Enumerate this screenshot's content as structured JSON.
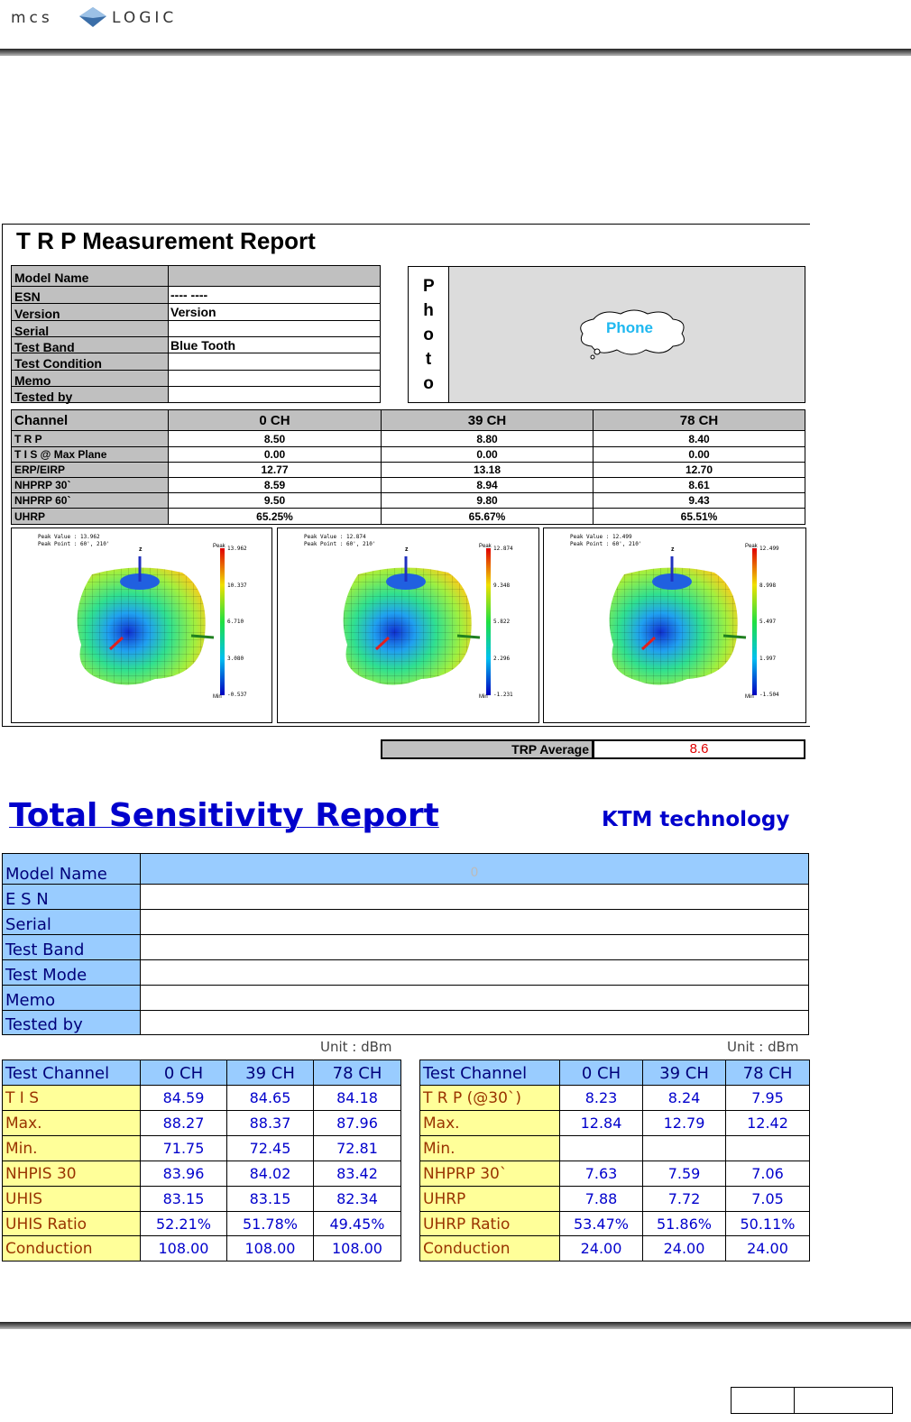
{
  "header": {
    "logo_left": "mcs",
    "logo_right": "LOGIC"
  },
  "trp_report": {
    "title": "T R P  Measurement Report",
    "info": [
      {
        "label": "Model Name"
      },
      {
        "label": "ESN",
        "value": "---- ----"
      },
      {
        "label": "Version",
        "value": "Version"
      },
      {
        "label": "Serial"
      },
      {
        "label": "Test Band",
        "value": "Blue Tooth"
      },
      {
        "label": "Test Condition"
      },
      {
        "label": "Memo"
      },
      {
        "label": "Tested by"
      }
    ],
    "photo_label": "Photo",
    "phone_label": "Phone",
    "channel_table": {
      "header": [
        "Channel",
        "0 CH",
        "39 CH",
        "78 CH"
      ],
      "rows": [
        [
          "T R P",
          "8.50",
          "8.80",
          "8.40"
        ],
        [
          "T I S @ Max Plane",
          "0.00",
          "0.00",
          "0.00"
        ],
        [
          "ERP/EIRP",
          "12.77",
          "13.18",
          "12.70"
        ],
        [
          "NHPRP 30`",
          "8.59",
          "8.94",
          "8.61"
        ],
        [
          "NHPRP 60`",
          "9.50",
          "9.80",
          "9.43"
        ],
        [
          "UHRP",
          "65.25%",
          "65.67%",
          "65.51%"
        ]
      ]
    },
    "plots": [
      {
        "peak_value": "Peak Value :  13.962",
        "peak_point": "Peak Point :  60', 210'",
        "scale": [
          "13.962",
          "10.337",
          "6.710",
          "3.080",
          "-0.537"
        ]
      },
      {
        "peak_value": "Peak Value :  12.874",
        "peak_point": "Peak Point :  60', 210'",
        "scale": [
          "12.874",
          "9.348",
          "5.822",
          "2.296",
          "-1.231"
        ]
      },
      {
        "peak_value": "Peak Value :  12.499",
        "peak_point": "Peak Point :  60', 210'",
        "scale": [
          "12.499",
          "8.998",
          "5.497",
          "1.997",
          "-1.504"
        ]
      }
    ],
    "plot_axis": "z",
    "plot_peak": "Peak",
    "plot_min": "Min",
    "average": {
      "label": "TRP Average",
      "value": "8.6"
    }
  },
  "sensitivity_report": {
    "title": "Total Sensitivity Report",
    "company": "KTM technology",
    "info_labels": [
      "Model Name",
      "E S N",
      "Serial",
      "Test Band",
      "Test Mode",
      "Memo",
      "Tested by"
    ],
    "model_value": "0",
    "unit": "Unit : dBm",
    "tis_table": {
      "header": [
        "Test Channel",
        "0 CH",
        "39 CH",
        "78 CH"
      ],
      "rows": [
        [
          "T I S",
          "84.59",
          "84.65",
          "84.18"
        ],
        [
          "Max.",
          "88.27",
          "88.37",
          "87.96"
        ],
        [
          "Min.",
          "71.75",
          "72.45",
          "72.81"
        ],
        [
          "NHPIS 30",
          "83.96",
          "84.02",
          "83.42"
        ],
        [
          "UHIS",
          "83.15",
          "83.15",
          "82.34"
        ],
        [
          "UHIS Ratio",
          "52.21%",
          "51.78%",
          "49.45%"
        ],
        [
          "Conduction",
          "108.00",
          "108.00",
          "108.00"
        ]
      ]
    },
    "trp_table": {
      "header": [
        "Test Channel",
        "0 CH",
        "39 CH",
        "78 CH"
      ],
      "rows": [
        [
          "T R P   (@30`)",
          "8.23",
          "8.24",
          "7.95"
        ],
        [
          "Max.",
          "12.84",
          "12.79",
          "12.42"
        ],
        [
          "Min.",
          null,
          null,
          null
        ],
        [
          "NHPRP 30`",
          "7.63",
          "7.59",
          "7.06"
        ],
        [
          "UHRP",
          "7.88",
          "7.72",
          "7.05"
        ],
        [
          "UHRP Ratio",
          "53.47%",
          "51.86%",
          "50.11%"
        ],
        [
          "Conduction",
          "24.00",
          "24.00",
          "24.00"
        ]
      ]
    }
  }
}
